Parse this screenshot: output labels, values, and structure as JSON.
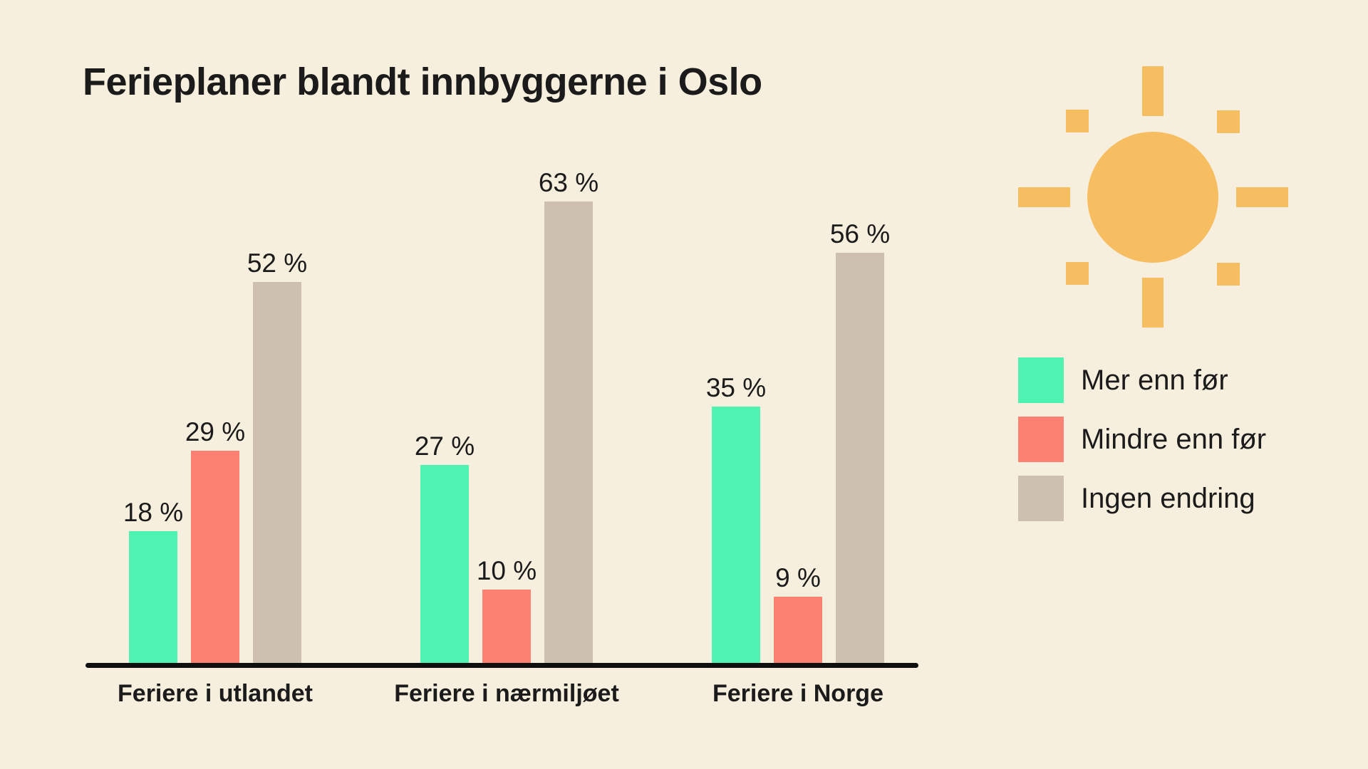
{
  "colors": {
    "background": "#F7EFDE",
    "text": "#1B1B1B",
    "axis": "#0F0F0F",
    "sun": "#F6BE60"
  },
  "decorations": [
    "sun-icon"
  ],
  "chart_data": {
    "type": "bar",
    "title": "Ferieplaner blandt innbyggerne i Oslo",
    "categories": [
      "Feriere i utlandet",
      "Feriere i nærmiljøet",
      "Feriere i Norge"
    ],
    "series": [
      {
        "name": "Mer enn før",
        "color": "#4EF3B2",
        "values": [
          18,
          27,
          35
        ]
      },
      {
        "name": "Mindre enn før",
        "color": "#FD8173",
        "values": [
          29,
          10,
          9
        ]
      },
      {
        "name": "Ingen endring",
        "color": "#CEC0B1",
        "values": [
          52,
          63,
          56
        ]
      }
    ],
    "value_suffix": " %",
    "value_labels": true,
    "ylim": [
      0,
      70
    ],
    "grid": false,
    "axis_ticks": "none",
    "legend_position": "right"
  }
}
